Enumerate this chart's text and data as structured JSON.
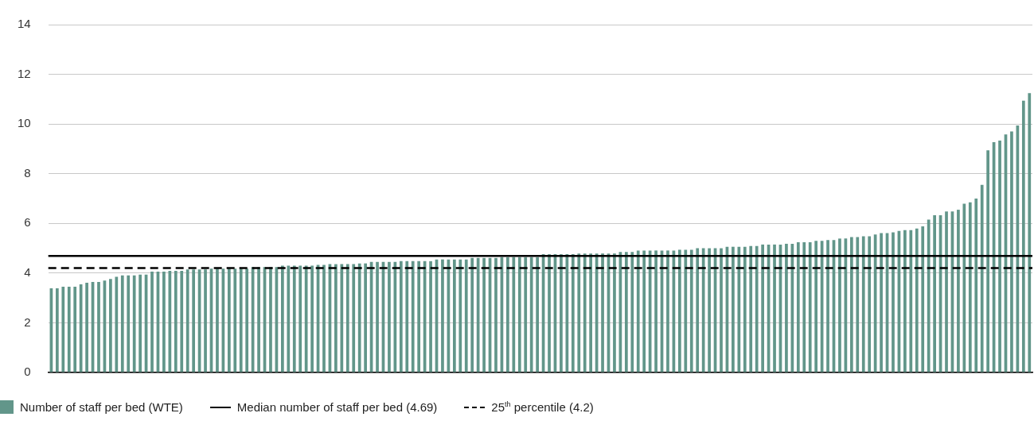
{
  "chart_data": {
    "type": "bar",
    "categories": [
      null,
      null,
      null,
      null,
      null,
      null,
      null,
      null,
      null,
      null,
      null,
      null,
      null,
      null,
      null,
      null,
      null,
      null,
      null,
      null,
      null,
      null,
      null,
      null,
      null,
      null,
      null,
      null,
      null,
      null,
      null,
      null,
      null,
      null,
      null,
      null,
      null,
      null,
      null,
      null,
      null,
      null,
      null,
      null,
      null,
      null,
      null,
      null,
      null,
      null,
      null,
      null,
      null,
      null,
      null,
      null,
      null,
      null,
      null,
      null,
      null,
      null,
      null,
      null,
      null,
      null,
      null,
      null,
      null,
      null,
      null,
      null,
      null,
      null,
      null,
      null,
      null,
      null,
      null,
      null,
      null,
      null,
      null,
      null,
      null,
      null,
      null,
      null,
      null,
      null,
      null,
      null,
      null,
      null,
      null,
      null,
      null,
      null,
      null,
      null,
      null,
      null,
      null,
      null,
      null,
      null,
      null,
      null,
      null,
      null,
      null,
      null,
      null,
      null,
      null,
      null,
      null,
      null,
      null,
      null,
      null,
      null,
      null,
      null,
      null,
      null,
      null,
      null,
      null,
      null,
      null,
      null,
      null,
      null,
      null,
      null,
      null,
      null,
      null,
      null,
      null,
      null,
      null,
      null,
      null,
      null,
      null,
      null,
      null,
      null,
      null,
      null,
      null,
      null,
      null,
      null,
      null,
      null,
      null,
      null,
      null,
      null,
      null,
      null,
      null,
      null
    ],
    "series": [
      {
        "name": "Number of staff per bed (WTE)",
        "color": "#62968a",
        "values": [
          3.39,
          3.39,
          3.45,
          3.45,
          3.45,
          3.55,
          3.61,
          3.64,
          3.64,
          3.7,
          3.76,
          3.85,
          3.91,
          3.91,
          3.91,
          3.94,
          3.94,
          4.06,
          4.06,
          4.06,
          4.09,
          4.09,
          4.09,
          4.15,
          4.15,
          4.15,
          4.15,
          4.18,
          4.18,
          4.18,
          4.18,
          4.18,
          4.18,
          4.18,
          4.24,
          4.24,
          4.24,
          4.24,
          4.24,
          4.3,
          4.3,
          4.3,
          4.3,
          4.3,
          4.3,
          4.33,
          4.33,
          4.36,
          4.36,
          4.36,
          4.36,
          4.36,
          4.39,
          4.39,
          4.45,
          4.45,
          4.45,
          4.45,
          4.45,
          4.48,
          4.48,
          4.48,
          4.48,
          4.48,
          4.48,
          4.55,
          4.55,
          4.55,
          4.55,
          4.55,
          4.55,
          4.61,
          4.61,
          4.61,
          4.61,
          4.61,
          4.64,
          4.64,
          4.64,
          4.64,
          4.64,
          4.64,
          4.64,
          4.76,
          4.76,
          4.76,
          4.76,
          4.76,
          4.76,
          4.79,
          4.79,
          4.79,
          4.79,
          4.79,
          4.79,
          4.79,
          4.85,
          4.85,
          4.85,
          4.91,
          4.91,
          4.91,
          4.91,
          4.91,
          4.91,
          4.91,
          4.94,
          4.94,
          4.94,
          5.0,
          5.0,
          5.0,
          5.0,
          5.0,
          5.06,
          5.06,
          5.06,
          5.06,
          5.09,
          5.09,
          5.15,
          5.15,
          5.15,
          5.15,
          5.18,
          5.18,
          5.24,
          5.24,
          5.24,
          5.3,
          5.3,
          5.33,
          5.33,
          5.39,
          5.39,
          5.45,
          5.45,
          5.48,
          5.48,
          5.55,
          5.61,
          5.61,
          5.64,
          5.7,
          5.73,
          5.73,
          5.79,
          5.88,
          6.15,
          6.33,
          6.33,
          6.48,
          6.48,
          6.55,
          6.79,
          6.85,
          7.0,
          7.55,
          8.94,
          9.27,
          9.33,
          9.58,
          9.7,
          9.94,
          10.94,
          11.24
        ]
      }
    ],
    "ylim": [
      0,
      14
    ],
    "yticks": [
      0,
      2,
      4,
      6,
      8,
      10,
      12,
      14
    ],
    "ref_lines": [
      {
        "axis": "y",
        "value": 4.69,
        "label": "Median number of staff per bed (4.69)",
        "color": "#000000",
        "line_style": "solid"
      },
      {
        "axis": "y",
        "value": 4.2,
        "label": "25$^{th}$ percentile (4.2)",
        "color": "#000000",
        "line_style": "dashed"
      }
    ],
    "grid": "y",
    "legend": "bottom",
    "tick_labels": "y"
  }
}
